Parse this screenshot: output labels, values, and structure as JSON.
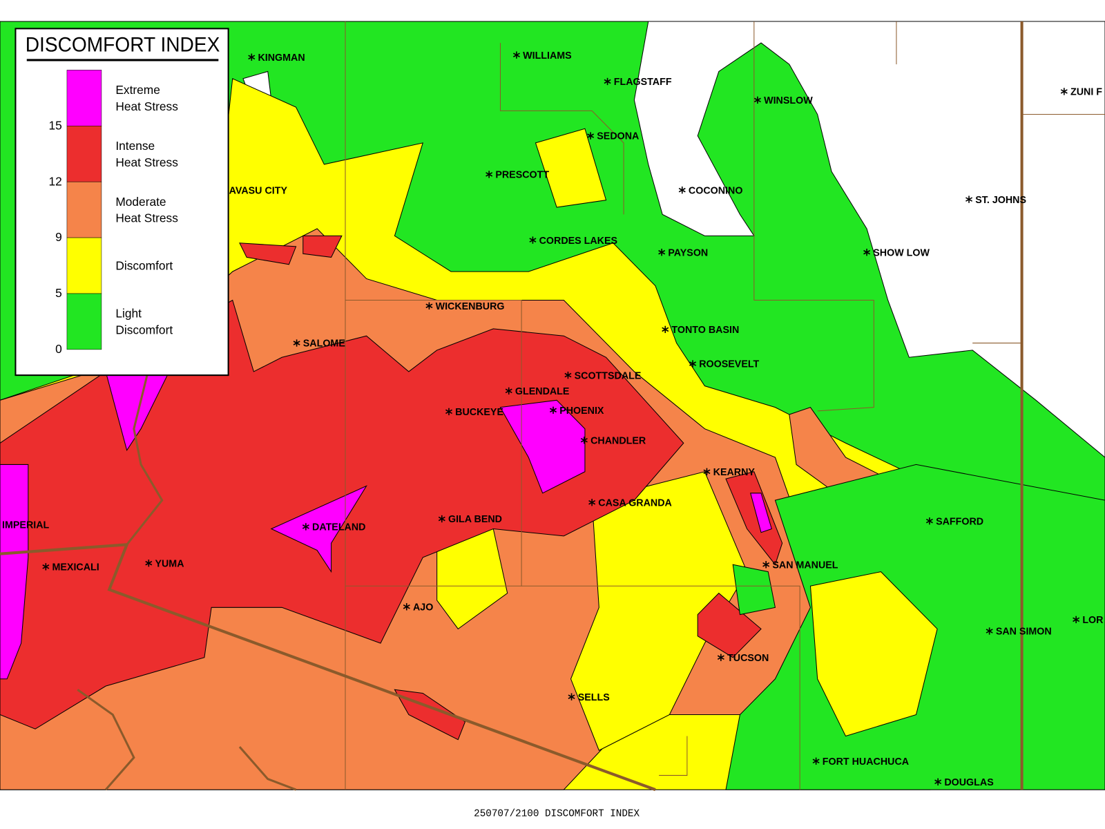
{
  "legend": {
    "title": "DISCOMFORT INDEX",
    "ticks": [
      15,
      12,
      9,
      5,
      0
    ],
    "categories": [
      {
        "lines": [
          "Extreme",
          "Heat Stress"
        ],
        "color": "#ff00ff"
      },
      {
        "lines": [
          "Intense",
          "Heat Stress"
        ],
        "color": "#ec2e2e"
      },
      {
        "lines": [
          "Moderate",
          "Heat Stress"
        ],
        "color": "#f5844a"
      },
      {
        "lines": [
          "Discomfort"
        ],
        "color": "#ffff00"
      },
      {
        "lines": [
          "Light",
          "Discomfort"
        ],
        "color": "#22e622"
      }
    ]
  },
  "cities": [
    "KINGMAN",
    "WILLIAMS",
    "FLAGSTAFF",
    "WINSLOW",
    "ZUNI F",
    "SEDONA",
    "PRESCOTT",
    "COCONINO",
    "ST. JOHNS",
    "AVASU CITY",
    "CORDES LAKES",
    "PAYSON",
    "SHOW LOW",
    "WICKENBURG",
    "TONTO BASIN",
    "SALOME",
    "ROOSEVELT",
    "SCOTTSDALE",
    "GLENDALE",
    "BUCKEYE",
    "PHOENIX",
    "CHANDLER",
    "KEARNY",
    "CASA GRANDA",
    "SAFFORD",
    "IMPERIAL",
    "DATELAND",
    "GILA BEND",
    "MEXICALI",
    "YUMA",
    "SAN MANUEL",
    "AJO",
    "SAN SIMON",
    "LOR",
    "TUCSON",
    "SELLS",
    "FORT HUACHUCA",
    "DOUGLAS"
  ],
  "footer": "250707/2100 DISCOMFORT INDEX"
}
